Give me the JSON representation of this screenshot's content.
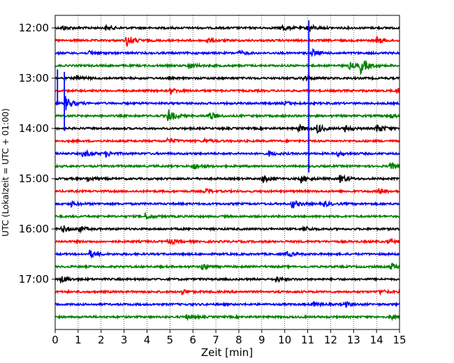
{
  "chart_data": {
    "type": "line",
    "subtype": "seismogram-helicorder",
    "xlabel": "Zeit  [min]",
    "ylabel": "UTC (Lokalzeit = UTC + 01:00)",
    "xlim": [
      0,
      15
    ],
    "x_ticks": [
      "0",
      "1",
      "2",
      "3",
      "4",
      "5",
      "6",
      "7",
      "8",
      "9",
      "10",
      "11",
      "12",
      "13",
      "14",
      "15"
    ],
    "y_ticks": [
      {
        "label": "12:00",
        "row": 0
      },
      {
        "label": "13:00",
        "row": 4
      },
      {
        "label": "14:00",
        "row": 8
      },
      {
        "label": "15:00",
        "row": 12
      },
      {
        "label": "16:00",
        "row": 16
      },
      {
        "label": "17:00",
        "row": 20
      }
    ],
    "grid": "vertical-dotted",
    "row_count": 24,
    "row_minutes": 15,
    "colors": [
      "#000000",
      "#ff0000",
      "#0000ff",
      "#008000"
    ],
    "events": [
      {
        "row": 0,
        "minute": 0.3,
        "amp": 0.35
      },
      {
        "row": 0,
        "minute": 2.2,
        "amp": 0.3
      },
      {
        "row": 0,
        "minute": 9.9,
        "amp": 0.4
      },
      {
        "row": 0,
        "minute": 11.0,
        "amp": 0.55
      },
      {
        "row": 1,
        "minute": 3.1,
        "amp": 0.9
      },
      {
        "row": 1,
        "minute": 6.6,
        "amp": 0.35
      },
      {
        "row": 1,
        "minute": 14.0,
        "amp": 0.5
      },
      {
        "row": 2,
        "minute": 1.5,
        "amp": 0.35
      },
      {
        "row": 2,
        "minute": 8.0,
        "amp": 0.3
      },
      {
        "row": 2,
        "minute": 11.2,
        "amp": 0.45
      },
      {
        "row": 3,
        "minute": 5.8,
        "amp": 0.5
      },
      {
        "row": 3,
        "minute": 12.8,
        "amp": 0.45
      },
      {
        "row": 3,
        "minute": 13.3,
        "amp": 1.1
      },
      {
        "row": 4,
        "minute": 0.9,
        "amp": 0.35
      },
      {
        "row": 4,
        "minute": 10.8,
        "amp": 0.3
      },
      {
        "row": 5,
        "minute": 5.0,
        "amp": 0.4
      },
      {
        "row": 5,
        "minute": 14.9,
        "amp": 0.35
      },
      {
        "row": 6,
        "minute": 0.45,
        "amp": 1.0
      },
      {
        "row": 6,
        "minute": 10.0,
        "amp": 0.3
      },
      {
        "row": 7,
        "minute": 4.9,
        "amp": 1.0
      },
      {
        "row": 7,
        "minute": 6.7,
        "amp": 0.55
      },
      {
        "row": 7,
        "minute": 14.6,
        "amp": 0.3
      },
      {
        "row": 8,
        "minute": 10.6,
        "amp": 0.45
      },
      {
        "row": 8,
        "minute": 11.4,
        "amp": 0.65
      },
      {
        "row": 8,
        "minute": 12.6,
        "amp": 0.45
      },
      {
        "row": 8,
        "minute": 14.0,
        "amp": 0.7
      },
      {
        "row": 9,
        "minute": 4.9,
        "amp": 0.4
      },
      {
        "row": 9,
        "minute": 6.5,
        "amp": 0.25
      },
      {
        "row": 10,
        "minute": 1.2,
        "amp": 0.55
      },
      {
        "row": 10,
        "minute": 2.2,
        "amp": 0.4
      },
      {
        "row": 10,
        "minute": 9.3,
        "amp": 0.35
      },
      {
        "row": 10,
        "minute": 12.3,
        "amp": 0.3
      },
      {
        "row": 11,
        "minute": 6.0,
        "amp": 0.5
      },
      {
        "row": 11,
        "minute": 14.6,
        "amp": 0.45
      },
      {
        "row": 12,
        "minute": 1.4,
        "amp": 0.35
      },
      {
        "row": 12,
        "minute": 9.0,
        "amp": 0.6
      },
      {
        "row": 12,
        "minute": 10.7,
        "amp": 0.55
      },
      {
        "row": 12,
        "minute": 12.4,
        "amp": 0.65
      },
      {
        "row": 13,
        "minute": 6.5,
        "amp": 0.4
      },
      {
        "row": 13,
        "minute": 14.1,
        "amp": 0.4
      },
      {
        "row": 14,
        "minute": 0.7,
        "amp": 0.35
      },
      {
        "row": 14,
        "minute": 10.3,
        "amp": 0.6
      },
      {
        "row": 14,
        "minute": 11.7,
        "amp": 0.35
      },
      {
        "row": 15,
        "minute": 3.9,
        "amp": 0.5
      },
      {
        "row": 16,
        "minute": 0.3,
        "amp": 0.55
      },
      {
        "row": 16,
        "minute": 1.0,
        "amp": 0.4
      },
      {
        "row": 16,
        "minute": 10.8,
        "amp": 0.4
      },
      {
        "row": 17,
        "minute": 4.9,
        "amp": 0.45
      },
      {
        "row": 17,
        "minute": 14.5,
        "amp": 0.3
      },
      {
        "row": 18,
        "minute": 1.5,
        "amp": 0.5
      },
      {
        "row": 18,
        "minute": 10.1,
        "amp": 0.35
      },
      {
        "row": 19,
        "minute": 6.4,
        "amp": 0.5
      },
      {
        "row": 19,
        "minute": 14.6,
        "amp": 0.55
      },
      {
        "row": 20,
        "minute": 0.25,
        "amp": 0.5
      },
      {
        "row": 20,
        "minute": 9.6,
        "amp": 0.4
      },
      {
        "row": 21,
        "minute": 5.5,
        "amp": 0.4
      },
      {
        "row": 21,
        "minute": 14.1,
        "amp": 0.35
      },
      {
        "row": 22,
        "minute": 11.2,
        "amp": 0.35
      },
      {
        "row": 22,
        "minute": 12.6,
        "amp": 0.4
      },
      {
        "row": 23,
        "minute": 5.7,
        "amp": 0.3
      },
      {
        "row": 23,
        "minute": 14.6,
        "amp": 0.3
      }
    ],
    "spikes": [
      {
        "minute": 11.05,
        "row_start": -0.6,
        "row_end": 11.5,
        "color": "#0000ff"
      },
      {
        "minute": 0.4,
        "row_start": 3.5,
        "row_end": 8.2,
        "color": "#0000ff"
      },
      {
        "minute": 0.1,
        "row_start": 3.3,
        "row_end": 6.0,
        "color": "#0000ff"
      }
    ]
  }
}
